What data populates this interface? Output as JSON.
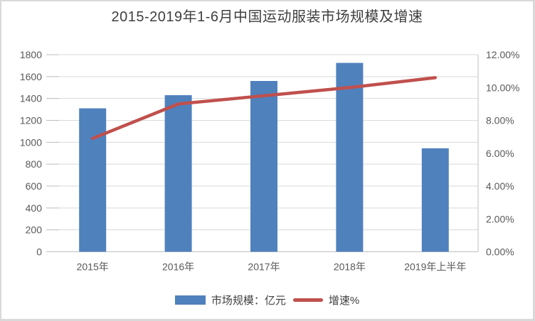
{
  "chart_data": {
    "type": "combo-bar-line",
    "title": "2015-2019年1-6月中国运动服装市场规模及增速",
    "categories": [
      "2015年",
      "2016年",
      "2017年",
      "2018年",
      "2019年上半年"
    ],
    "series": [
      {
        "name": "市场规模：亿元",
        "type": "bar",
        "axis": "left",
        "color": "#4F81BD",
        "values": [
          1310,
          1430,
          1560,
          1725,
          945
        ]
      },
      {
        "name": "增速%",
        "type": "line",
        "axis": "right",
        "color": "#C0504D",
        "values": [
          6.9,
          9.0,
          9.5,
          10.0,
          10.6
        ]
      }
    ],
    "left_axis": {
      "min": 0,
      "max": 1800,
      "step": 200,
      "labels": [
        "0",
        "200",
        "400",
        "600",
        "800",
        "1000",
        "1200",
        "1400",
        "1600",
        "1800"
      ]
    },
    "right_axis": {
      "min": 0,
      "max": 12,
      "step": 2,
      "labels": [
        "0.00%",
        "2.00%",
        "4.00%",
        "6.00%",
        "8.00%",
        "10.00%",
        "12.00%"
      ]
    },
    "grid": true,
    "legend_position": "bottom",
    "colors": {
      "bar": "#4F81BD",
      "line": "#C0504D",
      "grid": "#D9D9D9",
      "axis": "#BFBFBF",
      "text": "#595959",
      "title_text": "#3F3F3F"
    }
  }
}
